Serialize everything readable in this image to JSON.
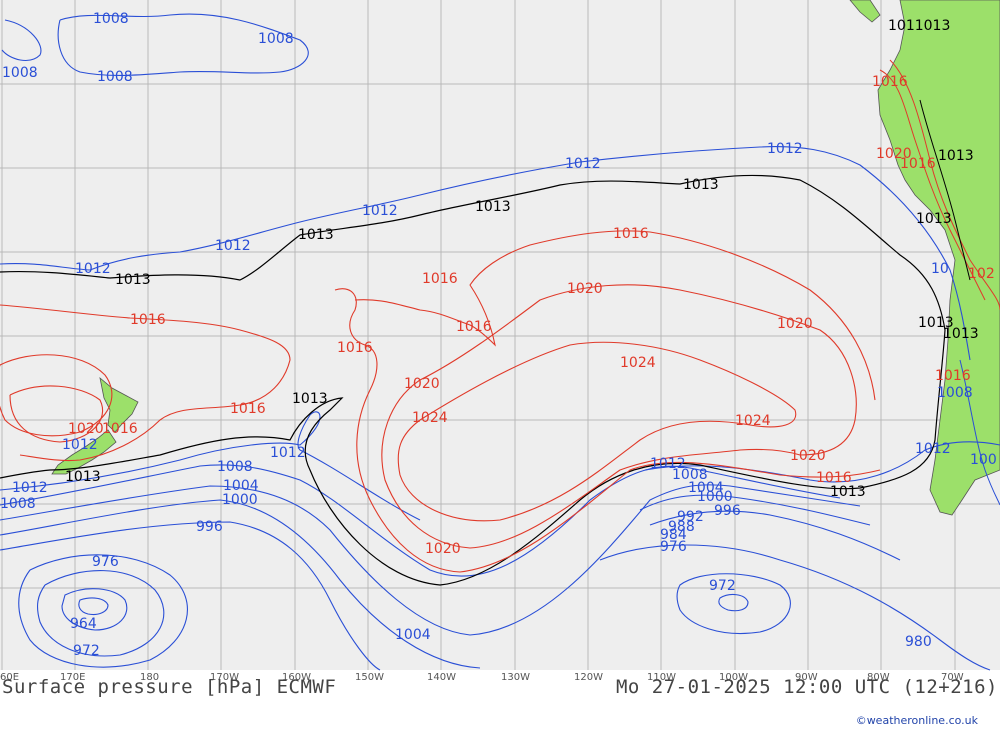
{
  "title": "Surface pressure [hPa] ECMWF",
  "valid_time": "Mo 27-01-2025 12:00 UTC (12+216)",
  "credit": "©weatheronline.co.uk",
  "colors": {
    "low": "#2a4fd6",
    "high": "#e03a2a",
    "standard": "#000000",
    "land": "#9ce06a",
    "sea": "#eeeeee",
    "grid": "#b9b9b9"
  },
  "longitude_ticks": [
    {
      "label": "60E"
    },
    {
      "label": "170E"
    },
    {
      "label": "180"
    },
    {
      "label": "170W"
    },
    {
      "label": "160W"
    },
    {
      "label": "150W"
    },
    {
      "label": "140W"
    },
    {
      "label": "130W"
    },
    {
      "label": "120W"
    },
    {
      "label": "110W"
    },
    {
      "label": "100W"
    },
    {
      "label": "90W"
    },
    {
      "label": "80W"
    },
    {
      "label": "70W"
    }
  ],
  "isobar_labels": [
    {
      "text": "1008",
      "kind": "low"
    },
    {
      "text": "1008",
      "kind": "low"
    },
    {
      "text": "1008",
      "kind": "low"
    },
    {
      "text": "1008",
      "kind": "low"
    },
    {
      "text": "1012",
      "kind": "low"
    },
    {
      "text": "1012",
      "kind": "low"
    },
    {
      "text": "1012",
      "kind": "low"
    },
    {
      "text": "1012",
      "kind": "low"
    },
    {
      "text": "1012",
      "kind": "low"
    },
    {
      "text": "1013",
      "kind": "standard"
    },
    {
      "text": "1013",
      "kind": "standard"
    },
    {
      "text": "1013",
      "kind": "standard"
    },
    {
      "text": "1013",
      "kind": "standard"
    },
    {
      "text": "1013",
      "kind": "standard"
    },
    {
      "text": "1016",
      "kind": "high"
    },
    {
      "text": "1016",
      "kind": "high"
    },
    {
      "text": "1016",
      "kind": "high"
    },
    {
      "text": "1016",
      "kind": "high"
    },
    {
      "text": "1016",
      "kind": "high"
    },
    {
      "text": "1020",
      "kind": "high"
    },
    {
      "text": "1020",
      "kind": "high"
    },
    {
      "text": "1020",
      "kind": "high"
    },
    {
      "text": "1020",
      "kind": "high"
    },
    {
      "text": "1024",
      "kind": "high"
    },
    {
      "text": "1024",
      "kind": "high"
    },
    {
      "text": "1024",
      "kind": "high"
    },
    {
      "text": "1013",
      "kind": "standard"
    },
    {
      "text": "1016",
      "kind": "high"
    },
    {
      "text": "1020",
      "kind": "high"
    },
    {
      "text": "1016",
      "kind": "high"
    },
    {
      "text": "1012",
      "kind": "low"
    },
    {
      "text": "1013",
      "kind": "standard"
    },
    {
      "text": "1008",
      "kind": "low"
    },
    {
      "text": "1004",
      "kind": "low"
    },
    {
      "text": "1000",
      "kind": "low"
    },
    {
      "text": "996",
      "kind": "low"
    },
    {
      "text": "976",
      "kind": "low"
    },
    {
      "text": "964",
      "kind": "low"
    },
    {
      "text": "972",
      "kind": "low"
    },
    {
      "text": "1004",
      "kind": "low"
    },
    {
      "text": "1012",
      "kind": "low"
    },
    {
      "text": "1008",
      "kind": "low"
    },
    {
      "text": "1004",
      "kind": "low"
    },
    {
      "text": "1000",
      "kind": "low"
    },
    {
      "text": "996",
      "kind": "low"
    },
    {
      "text": "992",
      "kind": "low"
    },
    {
      "text": "988",
      "kind": "low"
    },
    {
      "text": "984",
      "kind": "low"
    },
    {
      "text": "976",
      "kind": "low"
    },
    {
      "text": "972",
      "kind": "low"
    },
    {
      "text": "980",
      "kind": "low"
    },
    {
      "text": "1020",
      "kind": "high"
    },
    {
      "text": "1016",
      "kind": "high"
    },
    {
      "text": "1013",
      "kind": "standard"
    },
    {
      "text": "1012",
      "kind": "low"
    },
    {
      "text": "1008",
      "kind": "low"
    },
    {
      "text": "1012",
      "kind": "low"
    },
    {
      "text": "1011013",
      "kind": "standard"
    },
    {
      "text": "1016",
      "kind": "high"
    },
    {
      "text": "1020",
      "kind": "high"
    },
    {
      "text": "1016",
      "kind": "high"
    },
    {
      "text": "1013",
      "kind": "standard"
    },
    {
      "text": "1013",
      "kind": "standard"
    },
    {
      "text": "1013",
      "kind": "standard"
    },
    {
      "text": "1016",
      "kind": "high"
    },
    {
      "text": "1008",
      "kind": "low"
    },
    {
      "text": "1012",
      "kind": "low"
    },
    {
      "text": "100",
      "kind": "low"
    },
    {
      "text": "102",
      "kind": "high"
    },
    {
      "text": "10",
      "kind": "low"
    }
  ]
}
